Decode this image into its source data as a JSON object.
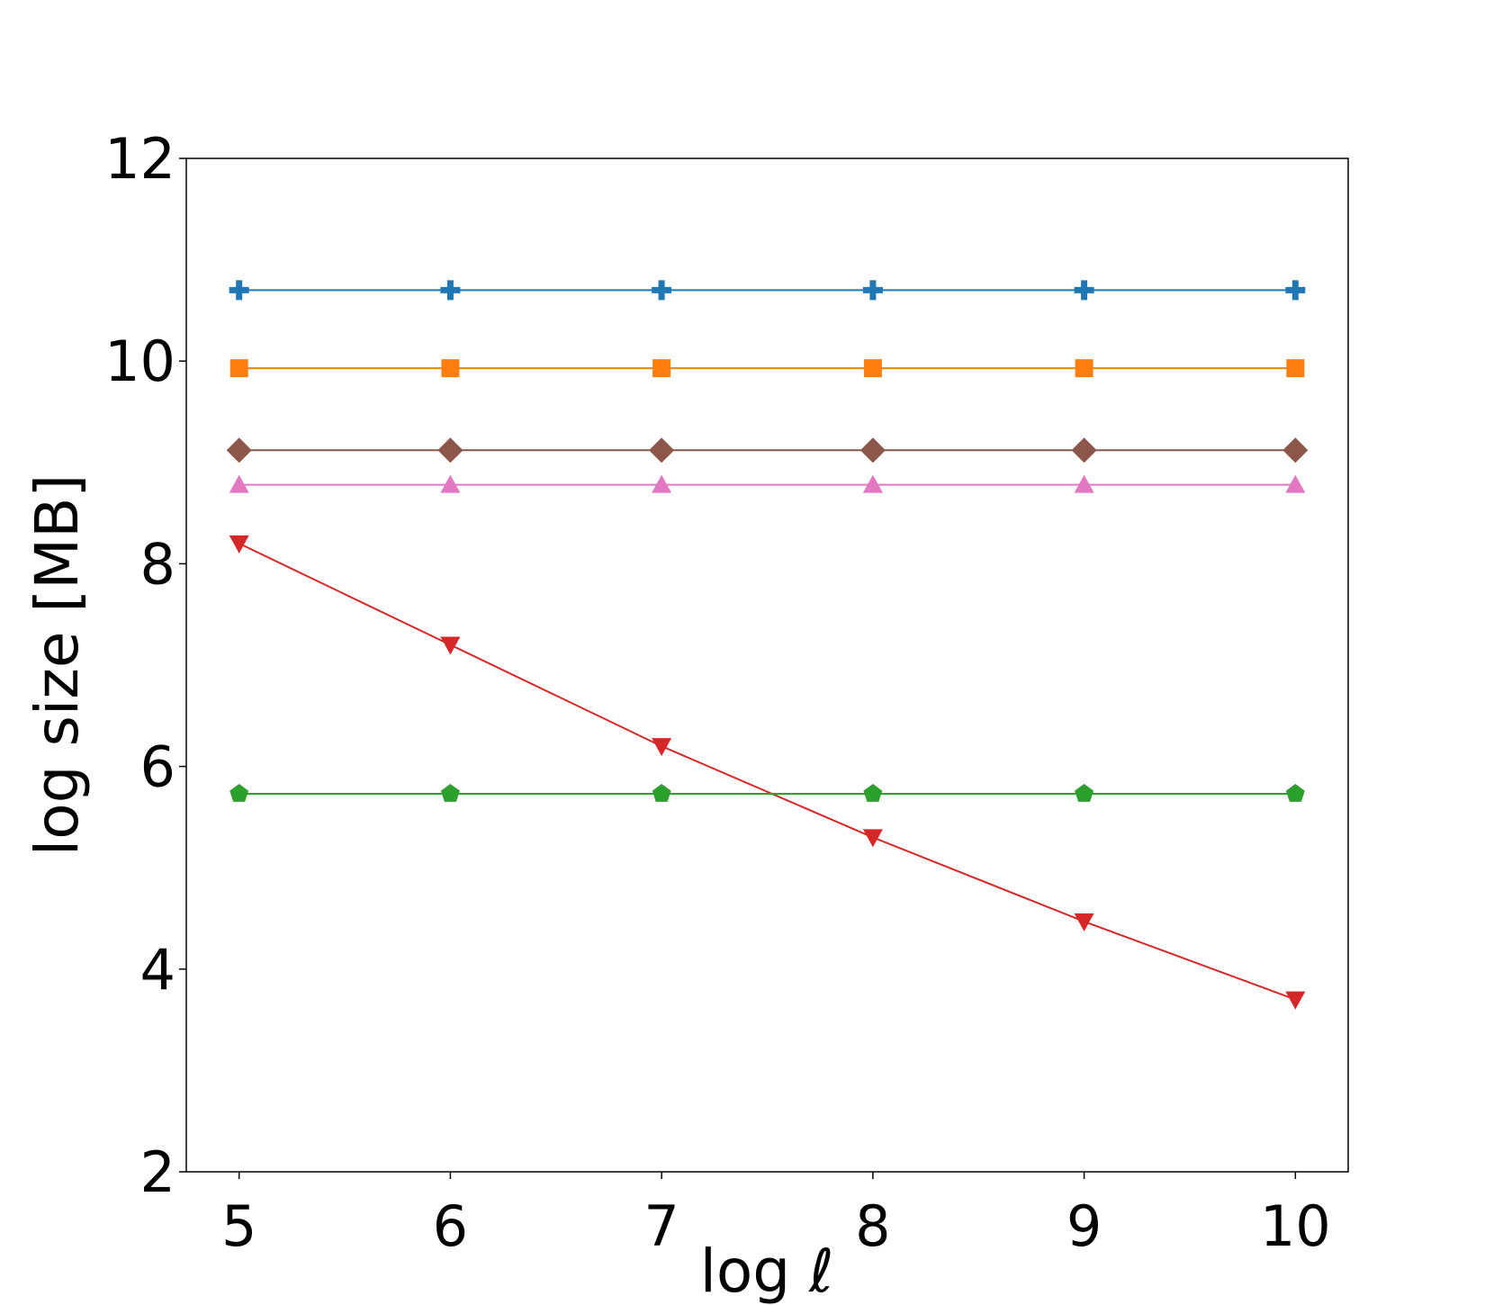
{
  "chart_data": {
    "type": "line",
    "xlabel": "log ℓ",
    "ylabel": "log size [MB]",
    "xlim": [
      4.75,
      10.25
    ],
    "ylim": [
      2,
      12
    ],
    "xticks": [
      5,
      6,
      7,
      8,
      9,
      10
    ],
    "yticks": [
      2,
      4,
      6,
      8,
      10,
      12
    ],
    "xtick_labels": [
      "5",
      "6",
      "7",
      "8",
      "9",
      "10"
    ],
    "ytick_labels": [
      "2",
      "4",
      "6",
      "8",
      "10",
      "12"
    ],
    "grid": false,
    "legend": "none",
    "x": [
      5,
      6,
      7,
      8,
      9,
      10
    ],
    "series": [
      {
        "color": "#1f77b4",
        "marker": "plus",
        "values": [
          10.7,
          10.7,
          10.7,
          10.7,
          10.7,
          10.7
        ]
      },
      {
        "color": "#ff7f0e",
        "marker": "square",
        "values": [
          9.93,
          9.93,
          9.93,
          9.93,
          9.93,
          9.93
        ]
      },
      {
        "color": "#8c564b",
        "marker": "diamond",
        "values": [
          9.12,
          9.12,
          9.12,
          9.12,
          9.12,
          9.12
        ]
      },
      {
        "color": "#e377c2",
        "marker": "triangle-up",
        "values": [
          8.78,
          8.78,
          8.78,
          8.78,
          8.78,
          8.78
        ]
      },
      {
        "color": "#d62728",
        "marker": "triangle-down",
        "values": [
          8.2,
          7.2,
          6.2,
          5.3,
          4.47,
          3.7
        ]
      },
      {
        "color": "#2ca02c",
        "marker": "pentagon",
        "values": [
          5.73,
          5.73,
          5.73,
          5.73,
          5.73,
          5.73
        ]
      }
    ]
  }
}
